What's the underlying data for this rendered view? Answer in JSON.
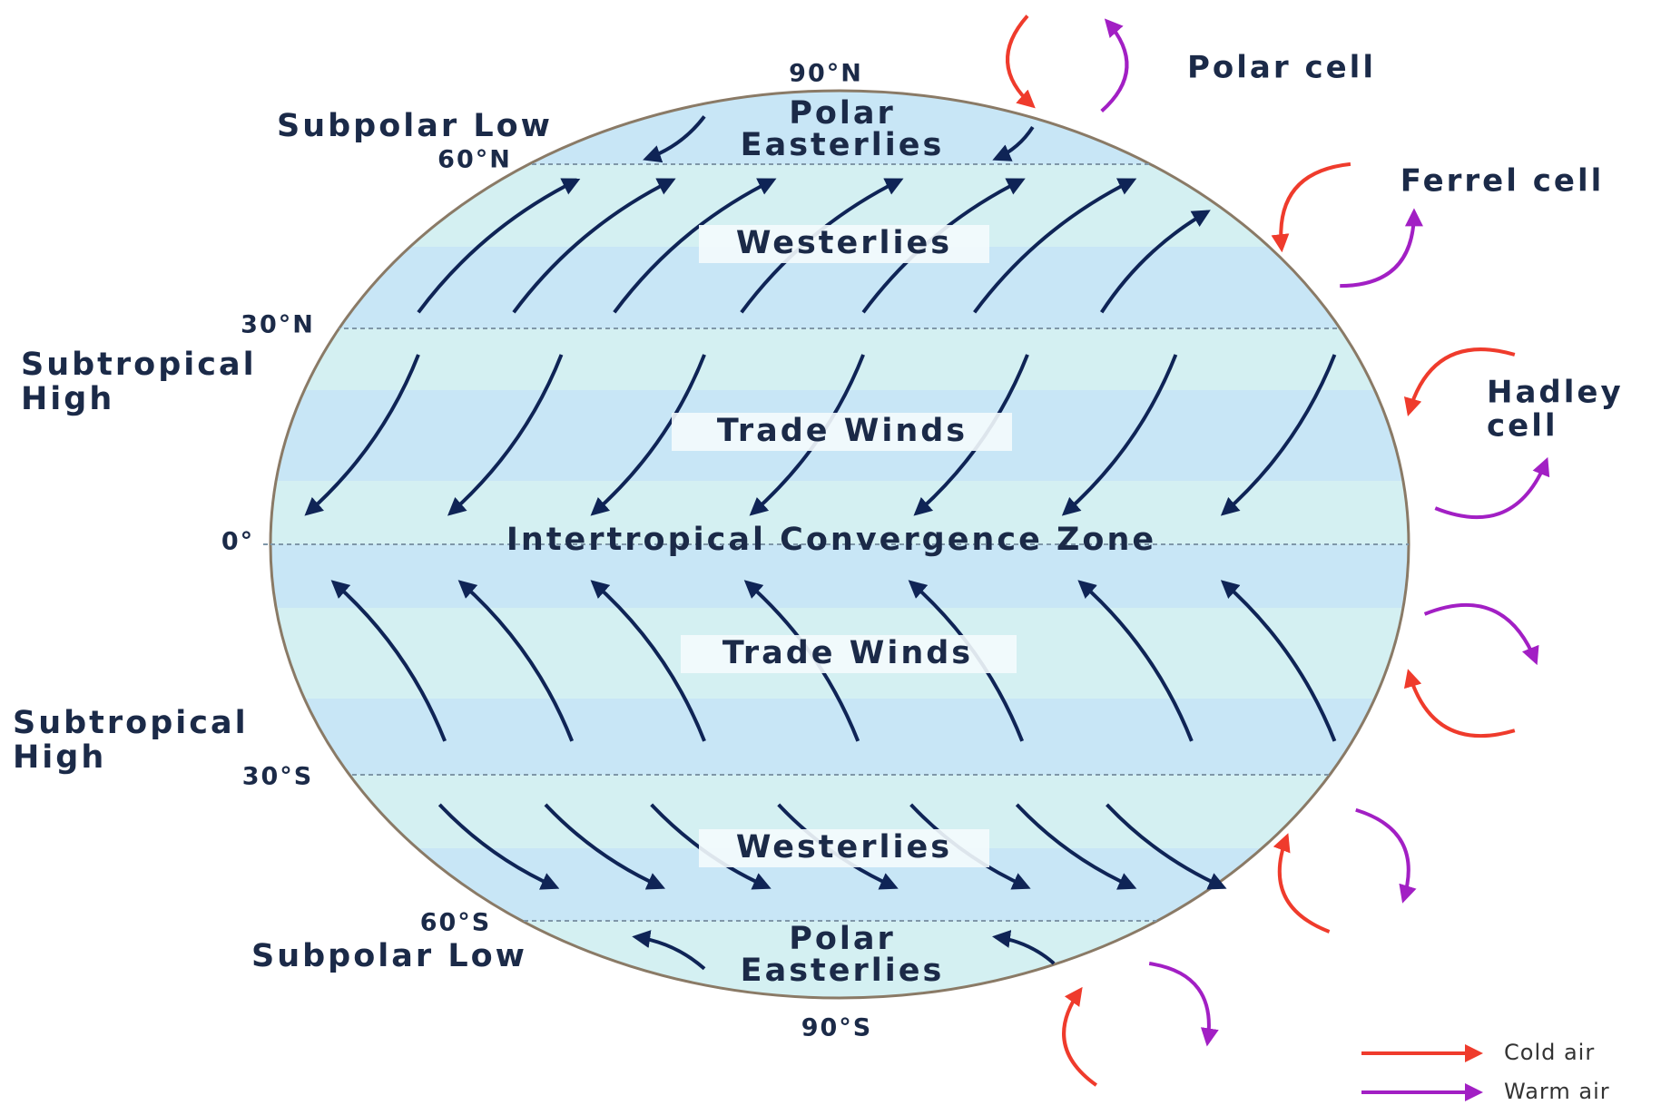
{
  "latitudes": {
    "n90": "90°N",
    "n60": "60°N",
    "n30": "30°N",
    "equator": "0°",
    "s30": "30°S",
    "s60": "60°S",
    "s90": "90°S"
  },
  "pressure_belts": {
    "subpolar_low_north": "Subpolar Low",
    "subtropical_high_north": [
      "Subtropical",
      "High"
    ],
    "subtropical_high_south": [
      "Subtropical",
      "High"
    ],
    "subpolar_low_south": "Subpolar Low"
  },
  "winds": {
    "polar_easterlies_north": [
      "Polar",
      "Easterlies"
    ],
    "westerlies_north": "Westerlies",
    "trade_winds_north": "Trade Winds",
    "itcz": "Intertropical Convergence Zone",
    "trade_winds_south": "Trade Winds",
    "westerlies_south": "Westerlies",
    "polar_easterlies_south": [
      "Polar",
      "Easterlies"
    ]
  },
  "cells": {
    "polar": "Polar cell",
    "ferrel": "Ferrel cell",
    "hadley": [
      "Hadley",
      "cell"
    ]
  },
  "legend": {
    "cold": "Cold air",
    "warm": "Warm air"
  }
}
